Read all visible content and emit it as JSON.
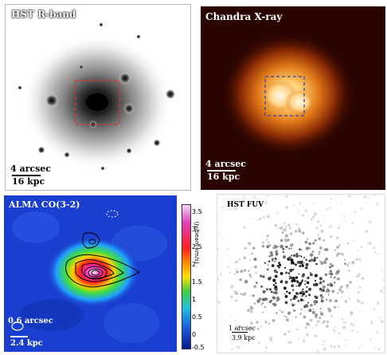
{
  "panels": {
    "hst_r": {
      "title": "HST R-band",
      "scale_angle": "4 arcsec",
      "scale_phys": "16 kpc"
    },
    "chandra": {
      "title": "Chandra X-ray",
      "scale_angle": "4 arcsec",
      "scale_phys": "16 kpc"
    },
    "alma": {
      "title": "ALMA CO(3-2)",
      "scale_angle": "0.6 arcsec",
      "scale_phys": "2.4 kpc"
    },
    "hst_fuv": {
      "title": "HST FUV",
      "scale_angle": "1 arcsec",
      "scale_phys": "3.9 kpc"
    }
  },
  "colorbar": {
    "label": "(Jy/beam·km/s)",
    "ticks": [
      "3.5",
      "3",
      "2.5",
      "2",
      "1.5",
      "1",
      "0.5",
      "0",
      "-0.5"
    ]
  },
  "colors": {
    "hst_box": "#e03030",
    "chandra_box": "#3040b0",
    "alma_bg": "#1a3fd0"
  }
}
